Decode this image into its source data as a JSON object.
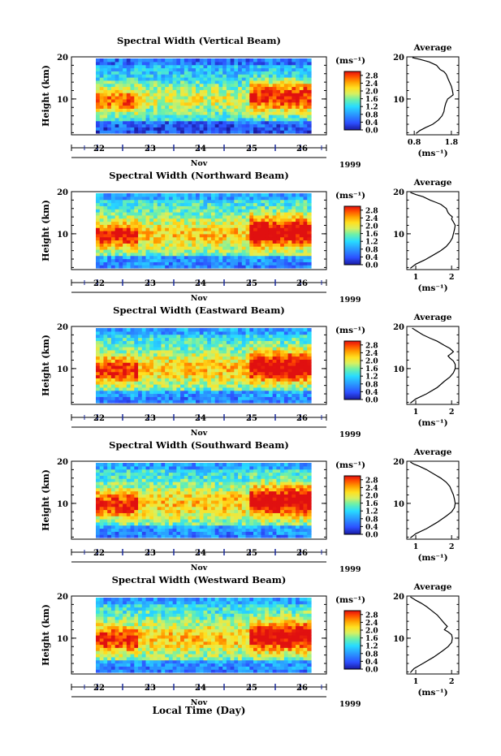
{
  "figure": {
    "time_axis_label": "Local Time (Day)",
    "month_label": "Nov",
    "year_label": "1999"
  },
  "chart_data": [
    {
      "type": "heatmap",
      "title": "Spectral Width (Vertical Beam)",
      "ylabel": "Height (km)",
      "ylim_km": [
        1.5,
        20
      ],
      "y_ticks": [
        10,
        20
      ],
      "x_ticks": [
        "22",
        "23",
        "24",
        "25",
        "26"
      ],
      "colorbar": {
        "unit": "(ms⁻¹)",
        "ticks": [
          "0.0",
          "0.4",
          "0.8",
          "1.2",
          "1.6",
          "2.0",
          "2.4",
          "2.8"
        ],
        "range": [
          0,
          3.0
        ]
      },
      "profile": {
        "type": "line",
        "title": "Average",
        "xlabel": "(ms⁻¹)",
        "x_ticks": [
          "0.8",
          "1.8"
        ],
        "xlim": [
          0.6,
          2.0
        ],
        "series": [
          {
            "x": [
              0.85,
              0.95,
              1.1,
              1.3,
              1.45,
              1.55,
              1.6,
              1.62,
              1.65,
              1.7,
              1.78,
              1.85,
              1.83,
              1.8,
              1.75,
              1.7,
              1.68,
              1.65,
              1.6,
              1.5,
              1.4,
              1.2,
              0.95,
              0.75
            ],
            "y": [
              1.8,
              2.5,
              3.2,
              4.0,
              5.0,
              6.0,
              7.0,
              8.0,
              9.0,
              10.0,
              10.5,
              11.0,
              12.0,
              13.0,
              14.0,
              15.0,
              15.5,
              16.0,
              16.5,
              17.0,
              18.0,
              18.8,
              19.4,
              19.8
            ]
          }
        ]
      }
    },
    {
      "type": "heatmap",
      "title": "Spectral Width (Northward Beam)",
      "ylabel": "Height (km)",
      "ylim_km": [
        1.5,
        20
      ],
      "y_ticks": [
        10,
        20
      ],
      "x_ticks": [
        "22",
        "23",
        "24",
        "25",
        "26"
      ],
      "colorbar": {
        "unit": "(ms⁻¹)",
        "ticks": [
          "0.0",
          "0.4",
          "0.8",
          "1.2",
          "1.6",
          "2.0",
          "2.4",
          "2.8"
        ],
        "range": [
          0,
          3.0
        ]
      },
      "profile": {
        "type": "line",
        "title": "Average",
        "xlabel": "(ms⁻¹)",
        "x_ticks": [
          "1",
          "2"
        ],
        "xlim": [
          0.75,
          2.2
        ],
        "series": [
          {
            "x": [
              0.85,
              1.0,
              1.25,
              1.5,
              1.7,
              1.85,
              1.95,
              2.02,
              2.05,
              2.08,
              2.1,
              2.05,
              2.0,
              2.02,
              1.95,
              1.9,
              1.85,
              1.7,
              1.55,
              1.4,
              1.2,
              1.0,
              0.85
            ],
            "y": [
              1.8,
              2.8,
              3.8,
              5.0,
              6.0,
              7.0,
              8.0,
              9.0,
              10.0,
              11.0,
              12.0,
              12.8,
              13.5,
              14.0,
              14.5,
              15.0,
              16.0,
              17.0,
              17.5,
              18.0,
              18.8,
              19.3,
              19.8
            ]
          }
        ]
      }
    },
    {
      "type": "heatmap",
      "title": "Spectral Width (Eastward Beam)",
      "ylabel": "Height (km)",
      "ylim_km": [
        1.5,
        20
      ],
      "y_ticks": [
        10,
        20
      ],
      "x_ticks": [
        "22",
        "23",
        "24",
        "25",
        "26"
      ],
      "colorbar": {
        "unit": "(ms⁻¹)",
        "ticks": [
          "0.0",
          "0.4",
          "0.8",
          "1.2",
          "1.6",
          "2.0",
          "2.4",
          "2.8"
        ],
        "range": [
          0,
          3.0
        ]
      },
      "profile": {
        "type": "line",
        "title": "Average",
        "xlabel": "(ms⁻¹)",
        "x_ticks": [
          "1",
          "2"
        ],
        "xlim": [
          0.75,
          2.2
        ],
        "series": [
          {
            "x": [
              0.85,
              1.0,
              1.3,
              1.6,
              1.8,
              1.95,
              2.05,
              2.1,
              2.1,
              2.05,
              1.95,
              1.9,
              1.98,
              2.05,
              1.95,
              1.8,
              1.6,
              1.4,
              1.2,
              1.05,
              0.9
            ],
            "y": [
              1.8,
              2.8,
              4.0,
              5.5,
              7.0,
              8.0,
              9.0,
              10.0,
              11.0,
              11.8,
              12.5,
              13.0,
              13.5,
              14.0,
              14.8,
              15.5,
              16.5,
              17.2,
              18.0,
              18.8,
              19.6
            ]
          }
        ]
      }
    },
    {
      "type": "heatmap",
      "title": "Spectral Width (Southward Beam)",
      "ylabel": "Height (km)",
      "ylim_km": [
        1.5,
        20
      ],
      "y_ticks": [
        10,
        20
      ],
      "x_ticks": [
        "22",
        "23",
        "24",
        "25",
        "26"
      ],
      "colorbar": {
        "unit": "(ms⁻¹)",
        "ticks": [
          "0.0",
          "0.4",
          "0.8",
          "1.2",
          "1.6",
          "2.0",
          "2.4",
          "2.8"
        ],
        "range": [
          0,
          3.0
        ]
      },
      "profile": {
        "type": "line",
        "title": "Average",
        "xlabel": "(ms⁻¹)",
        "x_ticks": [
          "1",
          "2"
        ],
        "xlim": [
          0.75,
          2.2
        ],
        "series": [
          {
            "x": [
              0.85,
              1.0,
              1.3,
              1.6,
              1.85,
              2.0,
              2.08,
              2.1,
              2.08,
              2.05,
              2.0,
              1.95,
              1.85,
              1.7,
              1.5,
              1.3,
              1.1,
              0.95,
              0.85
            ],
            "y": [
              1.8,
              2.8,
              4.0,
              5.5,
              7.0,
              8.0,
              9.0,
              10.0,
              11.0,
              12.0,
              13.0,
              14.0,
              15.0,
              16.0,
              17.0,
              18.0,
              18.8,
              19.3,
              19.8
            ]
          }
        ]
      }
    },
    {
      "type": "heatmap",
      "title": "Spectral Width (Westward Beam)",
      "ylabel": "Height (km)",
      "ylim_km": [
        1.5,
        20
      ],
      "y_ticks": [
        10,
        20
      ],
      "x_ticks": [
        "22",
        "23",
        "24",
        "25",
        "26"
      ],
      "colorbar": {
        "unit": "(ms⁻¹)",
        "ticks": [
          "0.0",
          "0.4",
          "0.8",
          "1.2",
          "1.6",
          "2.0",
          "2.4",
          "2.8"
        ],
        "range": [
          0,
          3.0
        ]
      },
      "profile": {
        "type": "line",
        "title": "Average",
        "xlabel": "(ms⁻¹)",
        "x_ticks": [
          "1",
          "2"
        ],
        "xlim": [
          0.75,
          2.2
        ],
        "series": [
          {
            "x": [
              0.85,
              0.95,
              1.2,
              1.5,
              1.75,
              1.9,
              2.0,
              2.02,
              2.0,
              1.9,
              1.8,
              1.88,
              1.8,
              1.7,
              1.6,
              1.45,
              1.3,
              1.15,
              1.0,
              0.85
            ],
            "y": [
              1.8,
              2.8,
              4.0,
              5.5,
              7.0,
              8.0,
              9.0,
              10.0,
              10.8,
              11.5,
              12.0,
              12.8,
              13.5,
              14.5,
              15.5,
              16.5,
              17.5,
              18.3,
              19.0,
              19.8
            ]
          }
        ]
      }
    }
  ]
}
